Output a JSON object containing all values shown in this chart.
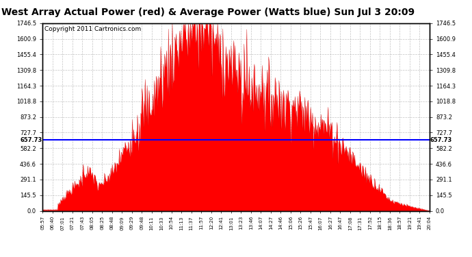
{
  "title": "West Array Actual Power (red) & Average Power (Watts blue) Sun Jul 3 20:09",
  "copyright": "Copyright 2011 Cartronics.com",
  "avg_power": 657.73,
  "y_max": 1746.5,
  "y_min": 0.0,
  "y_ticks": [
    0.0,
    145.5,
    291.1,
    436.6,
    582.2,
    727.7,
    873.2,
    1018.8,
    1164.3,
    1309.8,
    1455.4,
    1600.9,
    1746.5
  ],
  "x_labels": [
    "05:57",
    "06:40",
    "07:01",
    "07:21",
    "07:43",
    "08:05",
    "08:25",
    "08:48",
    "09:09",
    "09:29",
    "09:48",
    "10:11",
    "10:33",
    "10:54",
    "11:13",
    "11:37",
    "11:57",
    "12:20",
    "12:41",
    "13:01",
    "13:23",
    "13:46",
    "14:07",
    "14:27",
    "14:46",
    "15:06",
    "15:26",
    "15:47",
    "16:07",
    "16:27",
    "16:47",
    "17:08",
    "17:31",
    "17:52",
    "18:15",
    "18:36",
    "18:57",
    "19:21",
    "19:41",
    "20:04"
  ],
  "fill_color": "#FF0000",
  "line_color": "#0000FF",
  "bg_color": "#FFFFFF",
  "grid_color": "#AAAAAA",
  "title_fontsize": 10,
  "copyright_fontsize": 6.5
}
